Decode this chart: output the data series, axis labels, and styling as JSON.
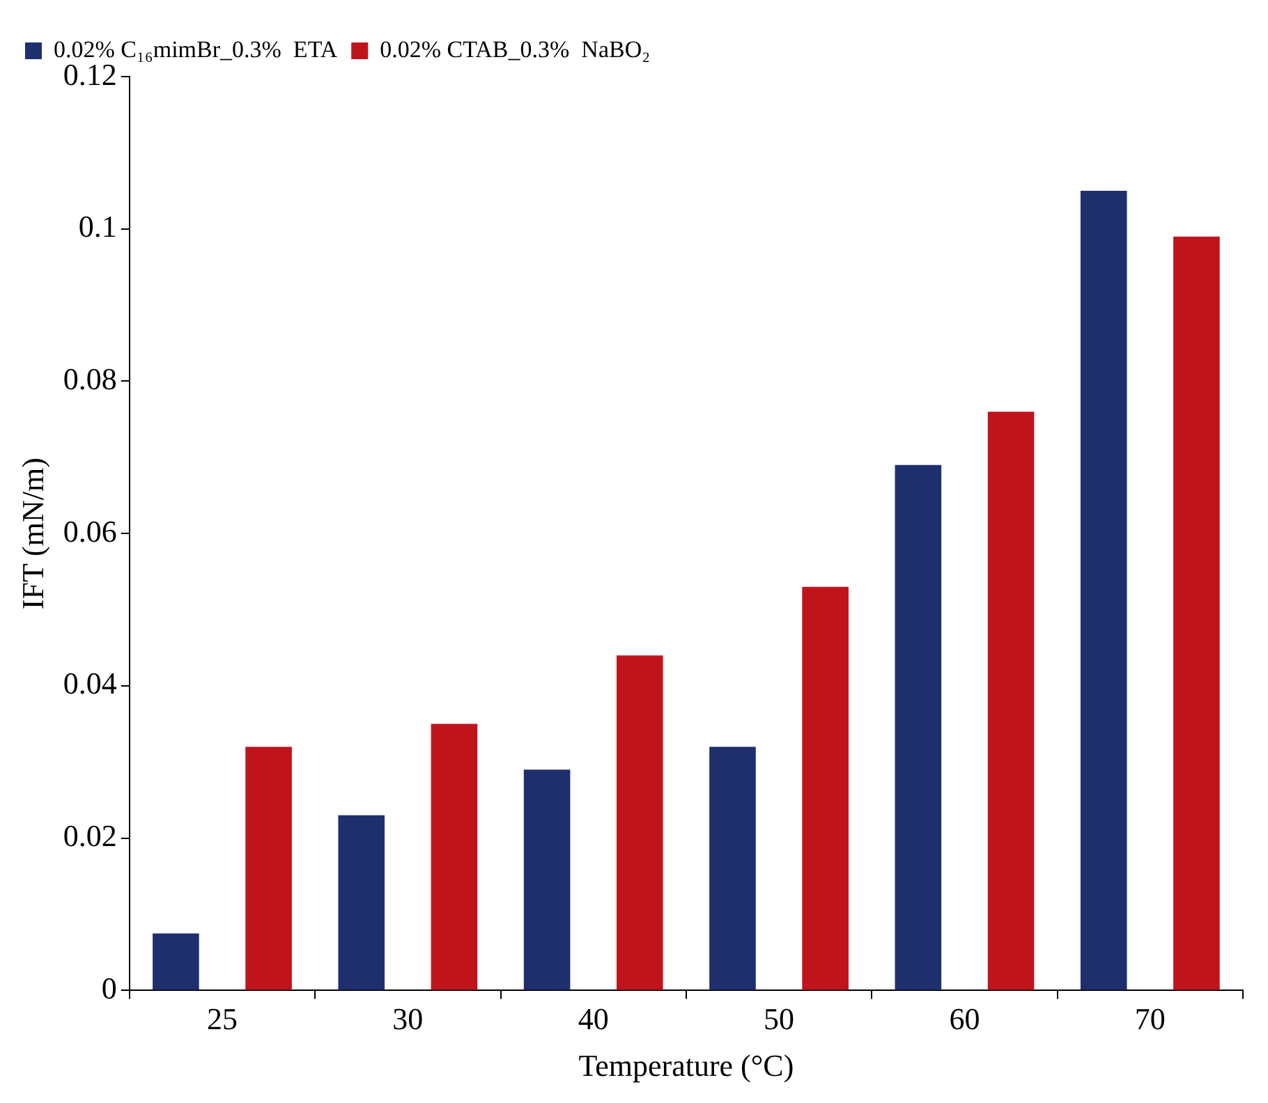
{
  "chart_data": {
    "type": "bar",
    "xlabel": "Temperature (°C)",
    "ylabel": "IFT (mN/m)",
    "categories": [
      "25",
      "30",
      "40",
      "50",
      "60",
      "70"
    ],
    "series": [
      {
        "name": "0.02% C₁₆mimBr_0.3%  ETA",
        "color": "#1f2f6e",
        "values": [
          0.0075,
          0.023,
          0.029,
          0.032,
          0.069,
          0.105
        ]
      },
      {
        "name": "0.02% CTAB_0.3%  NaBO₂",
        "color": "#c0141c",
        "values": [
          0.032,
          0.035,
          0.044,
          0.053,
          0.076,
          0.099
        ]
      }
    ],
    "ylim": [
      0,
      0.12
    ],
    "yticks": [
      0,
      0.02,
      0.04,
      0.06,
      0.08,
      0.1,
      0.12
    ],
    "grid": false,
    "legend": "top left"
  }
}
